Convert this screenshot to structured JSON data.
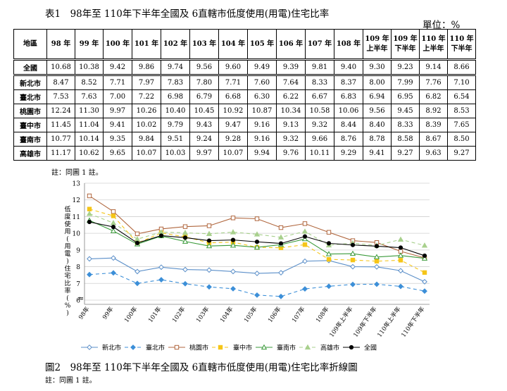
{
  "table_title": "表1　98年至 110年下半年全國及 6直轄市低度使用(用電)住宅比率",
  "unit_label": "單位：%",
  "table": {
    "row_header": "地區",
    "columns": [
      "98 年",
      "99 年",
      "100 年",
      "101 年",
      "102 年",
      "103 年",
      "104 年",
      "105 年",
      "106 年",
      "107 年",
      "108 年",
      "109 年上半年",
      "109 年下半年",
      "110 年上半年",
      "110 年下半年"
    ],
    "col_line1": [
      "98 年",
      "99 年",
      "100 年",
      "101 年",
      "102 年",
      "103 年",
      "104 年",
      "105 年",
      "106 年",
      "107 年",
      "108 年",
      "109 年",
      "109 年",
      "110 年",
      "110 年"
    ],
    "col_line2": [
      "",
      "",
      "",
      "",
      "",
      "",
      "",
      "",
      "",
      "",
      "",
      "上半年",
      "下半年",
      "上半年",
      "下半年"
    ],
    "rows": [
      {
        "name": "全國",
        "values": [
          "10.68",
          "10.38",
          "9.42",
          "9.86",
          "9.74",
          "9.56",
          "9.60",
          "9.49",
          "9.39",
          "9.81",
          "9.40",
          "9.30",
          "9.23",
          "9.14",
          "8.66"
        ]
      },
      {
        "name": "新北市",
        "values": [
          "8.47",
          "8.52",
          "7.71",
          "7.97",
          "7.83",
          "7.80",
          "7.71",
          "7.60",
          "7.64",
          "8.33",
          "8.37",
          "8.00",
          "7.99",
          "7.76",
          "7.10"
        ]
      },
      {
        "name": "臺北市",
        "values": [
          "7.53",
          "7.63",
          "7.00",
          "7.22",
          "6.98",
          "6.79",
          "6.68",
          "6.30",
          "6.22",
          "6.67",
          "6.83",
          "6.94",
          "6.95",
          "6.82",
          "6.54"
        ]
      },
      {
        "name": "桃園市",
        "values": [
          "12.24",
          "11.30",
          "9.97",
          "10.26",
          "10.40",
          "10.45",
          "10.92",
          "10.87",
          "10.34",
          "10.58",
          "10.06",
          "9.56",
          "9.45",
          "8.92",
          "8.53"
        ]
      },
      {
        "name": "臺中市",
        "values": [
          "11.45",
          "11.04",
          "9.41",
          "10.02",
          "9.79",
          "9.43",
          "9.47",
          "9.16",
          "9.13",
          "9.32",
          "8.44",
          "8.40",
          "8.33",
          "8.39",
          "7.65"
        ]
      },
      {
        "name": "臺南市",
        "values": [
          "10.77",
          "10.14",
          "9.35",
          "9.84",
          "9.51",
          "9.24",
          "9.28",
          "9.16",
          "9.32",
          "9.66",
          "8.76",
          "8.78",
          "8.58",
          "8.67",
          "8.50"
        ]
      },
      {
        "name": "高雄市",
        "values": [
          "11.17",
          "10.62",
          "9.65",
          "10.07",
          "10.03",
          "9.97",
          "10.07",
          "9.94",
          "9.76",
          "10.11",
          "9.29",
          "9.41",
          "9.27",
          "9.63",
          "9.27"
        ]
      }
    ]
  },
  "table_note": "註：同圖 1 註。",
  "chart_data": {
    "type": "line",
    "ylabel": "低度使用(用電)住宅比率(%)",
    "ylabel_chars": [
      "低",
      "度",
      "使",
      "用",
      "(",
      "用",
      "電",
      ")",
      "住",
      "宅",
      "比",
      "率",
      "(",
      "%",
      ")"
    ],
    "ylim": [
      6,
      13
    ],
    "yticks": [
      "6",
      "7",
      "8",
      "9",
      "10",
      "11",
      "12",
      "13"
    ],
    "axis_break": "≈",
    "grid": true,
    "legend_position": "bottom",
    "categories": [
      "98年",
      "99年",
      "100年",
      "101年",
      "102年",
      "103年",
      "104年",
      "105年",
      "106年",
      "107年",
      "108年",
      "109年上半年",
      "109年下半年",
      "110年上半年",
      "110年下半年"
    ],
    "series": [
      {
        "name": "新北市",
        "color": "#5b8fc9",
        "dash": "",
        "marker": "diamond-open",
        "values": [
          8.47,
          8.52,
          7.71,
          7.97,
          7.83,
          7.8,
          7.71,
          7.6,
          7.64,
          8.33,
          8.37,
          8.0,
          7.99,
          7.76,
          7.1
        ]
      },
      {
        "name": "臺北市",
        "color": "#3c8fd8",
        "dash": "5,4",
        "marker": "diamond",
        "values": [
          7.53,
          7.63,
          7.0,
          7.22,
          6.98,
          6.79,
          6.68,
          6.3,
          6.22,
          6.67,
          6.83,
          6.94,
          6.95,
          6.82,
          6.54
        ]
      },
      {
        "name": "桃園市",
        "color": "#b0663d",
        "dash": "",
        "marker": "square-open",
        "values": [
          12.24,
          11.3,
          9.97,
          10.26,
          10.4,
          10.45,
          10.92,
          10.87,
          10.34,
          10.58,
          10.06,
          9.56,
          9.45,
          8.92,
          8.53
        ]
      },
      {
        "name": "臺中市",
        "color": "#f5c518",
        "dash": "5,4",
        "marker": "square",
        "values": [
          11.45,
          11.04,
          9.41,
          10.02,
          9.79,
          9.43,
          9.47,
          9.16,
          9.13,
          9.32,
          8.44,
          8.4,
          8.33,
          8.39,
          7.65
        ]
      },
      {
        "name": "臺南市",
        "color": "#3a9a3a",
        "dash": "",
        "marker": "triangle-open",
        "values": [
          10.77,
          10.14,
          9.35,
          9.84,
          9.51,
          9.24,
          9.28,
          9.16,
          9.32,
          9.66,
          8.76,
          8.78,
          8.58,
          8.67,
          8.5
        ]
      },
      {
        "name": "高雄市",
        "color": "#a8d08d",
        "dash": "5,4",
        "marker": "triangle",
        "values": [
          11.17,
          10.62,
          9.65,
          10.07,
          10.03,
          9.97,
          10.07,
          9.94,
          9.76,
          10.11,
          9.29,
          9.41,
          9.27,
          9.63,
          9.27
        ]
      },
      {
        "name": "全國",
        "color": "#000000",
        "dash": "",
        "marker": "circle",
        "values": [
          10.68,
          10.38,
          9.42,
          9.86,
          9.74,
          9.56,
          9.6,
          9.49,
          9.39,
          9.81,
          9.4,
          9.3,
          9.23,
          9.14,
          8.66
        ]
      }
    ]
  },
  "figure_caption": "圖2　98年至 110年下半年全國及 6直轄市低度使用(用電)住宅比率折線圖",
  "figure_note": "註：同圖 1 註。"
}
